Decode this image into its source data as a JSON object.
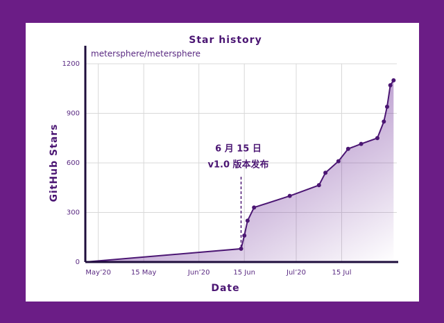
{
  "chart_data": {
    "type": "line",
    "title": "Star history",
    "subtitle": "metersphere/metersphere",
    "x_label": "Date",
    "y_label": "GitHub Stars",
    "x": [
      "2020-04-27",
      "2020-06-14",
      "2020-06-15",
      "2020-06-16",
      "2020-06-18",
      "2020-06-29",
      "2020-07-08",
      "2020-07-10",
      "2020-07-14",
      "2020-07-17",
      "2020-07-21",
      "2020-07-26",
      "2020-07-28",
      "2020-07-29",
      "2020-07-30",
      "2020-07-31"
    ],
    "series": [
      {
        "name": "metersphere/metersphere",
        "color": "#4b1673",
        "values": [
          0,
          80,
          160,
          250,
          330,
          400,
          465,
          540,
          610,
          685,
          715,
          750,
          850,
          940,
          1070,
          1100
        ]
      }
    ],
    "xlim": [
      "2020-04-27",
      "2020-08-01"
    ],
    "xticks": [
      {
        "value": "2020-05-01",
        "label": "May’20"
      },
      {
        "value": "2020-05-15",
        "label": "15 May"
      },
      {
        "value": "2020-06-01",
        "label": "Jun’20"
      },
      {
        "value": "2020-06-15",
        "label": "15 Jun"
      },
      {
        "value": "2020-07-01",
        "label": "Jul’20"
      },
      {
        "value": "2020-07-15",
        "label": "15 Jul"
      }
    ],
    "ylim": [
      0,
      1200
    ],
    "yticks": [
      0,
      300,
      600,
      900,
      1200
    ],
    "grid": true,
    "annotation": {
      "x": "2020-06-14",
      "lines": [
        "6 月 15 日",
        "v1.0 版本发布"
      ]
    }
  }
}
